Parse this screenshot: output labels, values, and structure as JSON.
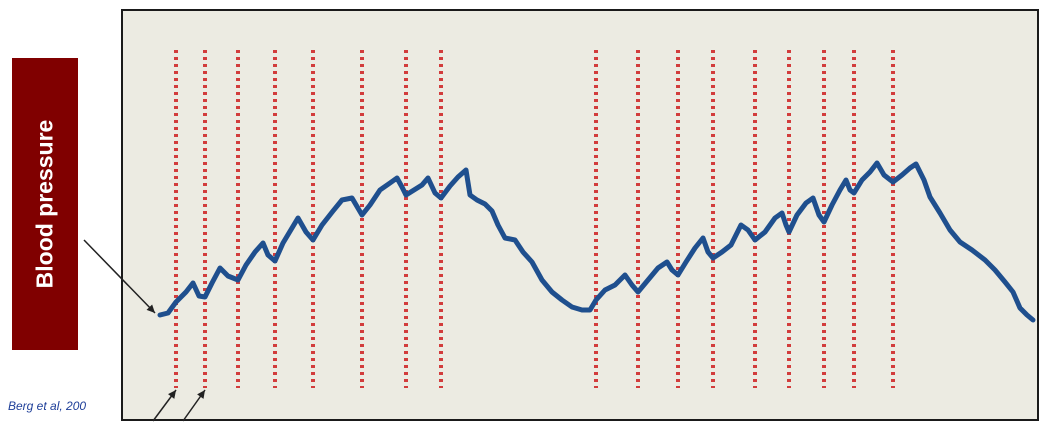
{
  "label": {
    "text": "Blood pressure"
  },
  "citation": {
    "text": "Berg et al, 200"
  },
  "colors": {
    "panel_bg": "#ecebe2",
    "panel_border": "#1a1a1a",
    "label_bg": "#800000",
    "label_text": "#ffffff",
    "trace": "#1f4f8e",
    "marker": "#d23c3c",
    "citation": "#1f3f99",
    "arrow": "#222222"
  }
}
